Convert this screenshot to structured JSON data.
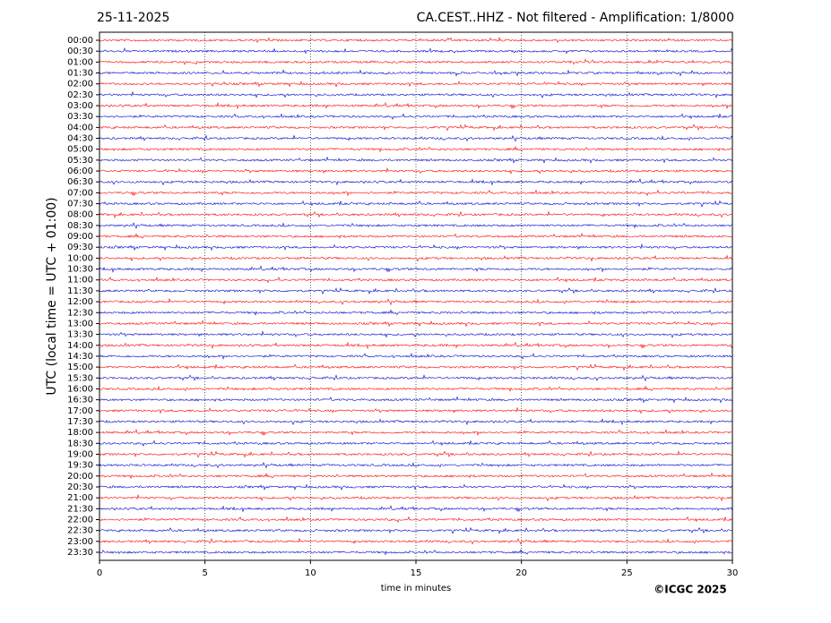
{
  "chart_data": {
    "type": "helicorder",
    "date": "25-11-2025",
    "title": "CA.CEST..HHZ - Not filtered - Amplification: 1/8000",
    "y_label": "UTC (local time = UTC + 01:00)",
    "x_label": "time in minutes",
    "credit": "©ICGC 2025",
    "categories": [
      "00:00",
      "00:30",
      "01:00",
      "01:30",
      "02:00",
      "02:30",
      "03:00",
      "03:30",
      "04:00",
      "04:30",
      "05:00",
      "05:30",
      "06:00",
      "06:30",
      "07:00",
      "07:30",
      "08:00",
      "08:30",
      "09:00",
      "09:30",
      "10:00",
      "10:30",
      "11:00",
      "11:30",
      "12:00",
      "12:30",
      "13:00",
      "13:30",
      "14:00",
      "14:30",
      "15:00",
      "15:30",
      "16:00",
      "16:30",
      "17:00",
      "17:30",
      "18:00",
      "18:30",
      "19:00",
      "19:30",
      "20:00",
      "20:30",
      "21:00",
      "21:30",
      "22:00",
      "22:30",
      "23:00",
      "23:30"
    ],
    "colors": [
      "#ff0000",
      "#0000cc"
    ],
    "xlim": [
      0,
      30
    ],
    "xticks": [
      0,
      5,
      10,
      15,
      20,
      25,
      30
    ],
    "grid": true
  }
}
